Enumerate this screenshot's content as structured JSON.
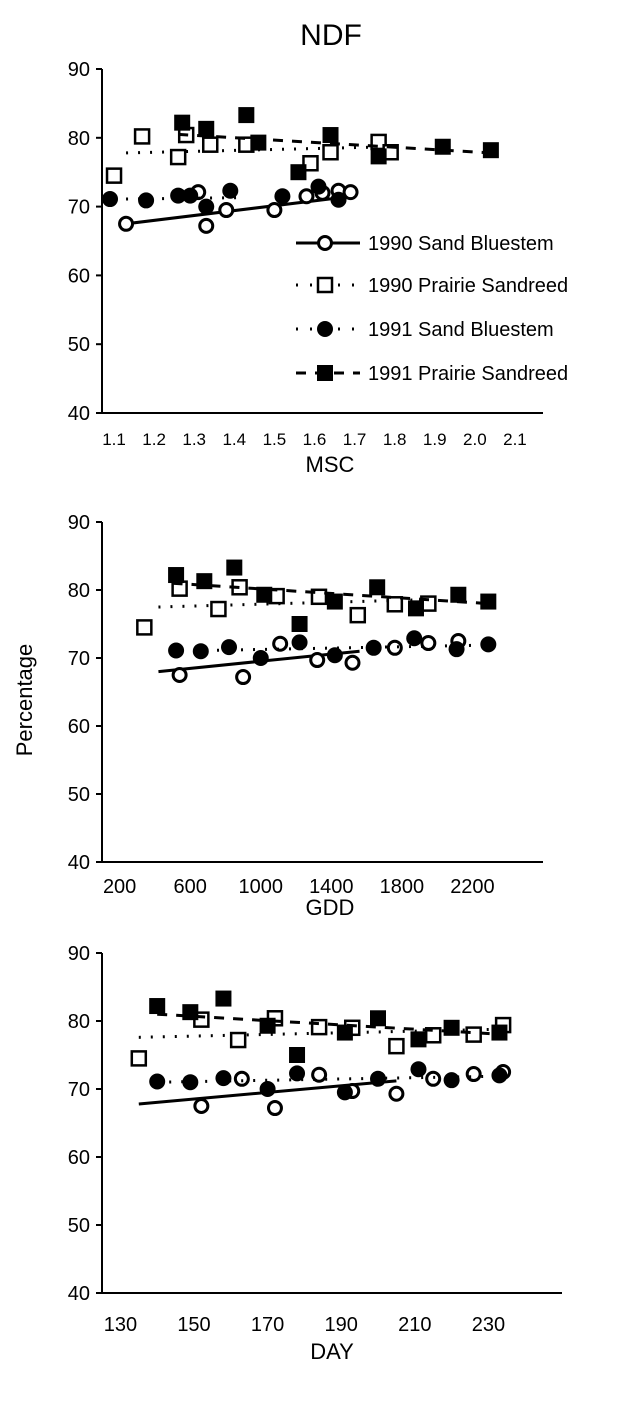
{
  "figure": {
    "title": "NDF",
    "shared_ylabel": "Percentage"
  },
  "legend": [
    {
      "label": "1990 Sand Bluestem",
      "marker": "open-circle",
      "line": "solid"
    },
    {
      "label": "1990 Prairie Sandreed",
      "marker": "open-square",
      "line": "dotted"
    },
    {
      "label": "1991 Sand Bluestem",
      "marker": "filled-circle",
      "line": "dotted"
    },
    {
      "label": "1991 Prairie Sandreed",
      "marker": "filled-square",
      "line": "dashed"
    }
  ],
  "chart_data": [
    {
      "type": "scatter",
      "xlabel": "MSC",
      "ylabel": "",
      "xlim": [
        1.07,
        2.17
      ],
      "ylim": [
        40,
        90
      ],
      "xticks": [
        "1.1",
        "1.2",
        "1.3",
        "1.4",
        "1.5",
        "1.6",
        "1.7",
        "1.8",
        "1.9",
        "2.0",
        "2.1"
      ],
      "xtick_values": [
        1.1,
        1.2,
        1.3,
        1.4,
        1.5,
        1.6,
        1.7,
        1.8,
        1.9,
        2.0,
        2.1
      ],
      "yticks": [
        "40",
        "50",
        "60",
        "70",
        "80",
        "90"
      ],
      "ytick_values": [
        40,
        50,
        60,
        70,
        80,
        90
      ],
      "legend_position": "center-right",
      "series": [
        {
          "name": "1990 Sand Bluestem",
          "x": [
            1.13,
            1.31,
            1.33,
            1.38,
            1.5,
            1.58,
            1.62,
            1.66,
            1.69
          ],
          "y": [
            67.5,
            72.1,
            67.2,
            69.5,
            69.5,
            71.5,
            72.0,
            72.3,
            72.1
          ],
          "fit": [
            [
              1.13,
              67.5
            ],
            [
              1.65,
              71.2
            ]
          ]
        },
        {
          "name": "1990 Prairie Sandreed",
          "x": [
            1.1,
            1.17,
            1.26,
            1.28,
            1.34,
            1.43,
            1.59,
            1.64,
            1.76,
            1.79
          ],
          "y": [
            74.5,
            80.2,
            77.2,
            80.4,
            79.0,
            79.0,
            76.3,
            77.9,
            79.4,
            77.9
          ],
          "fit": [
            [
              1.13,
              77.8
            ],
            [
              1.79,
              78.7
            ]
          ]
        },
        {
          "name": "1991 Sand Bluestem",
          "x": [
            1.09,
            1.18,
            1.26,
            1.29,
            1.33,
            1.39,
            1.52,
            1.61,
            1.66
          ],
          "y": [
            71.1,
            70.9,
            71.6,
            71.6,
            70.0,
            72.3,
            71.5,
            72.9,
            71.0
          ],
          "fit": [
            [
              1.13,
              71.1
            ],
            [
              1.42,
              71.3
            ]
          ]
        },
        {
          "name": "1991 Prairie Sandreed",
          "x": [
            1.27,
            1.33,
            1.43,
            1.46,
            1.56,
            1.64,
            1.76,
            1.92,
            2.04
          ],
          "y": [
            82.2,
            81.3,
            83.3,
            79.3,
            75.0,
            80.4,
            77.3,
            78.7,
            78.2
          ],
          "fit": [
            [
              1.26,
              80.5
            ],
            [
              2.04,
              77.8
            ]
          ]
        }
      ]
    },
    {
      "type": "scatter",
      "xlabel": "GDD",
      "ylabel": "Percentage",
      "xlim": [
        100,
        2600
      ],
      "ylim": [
        40,
        90
      ],
      "xticks": [
        "200",
        "600",
        "1000",
        "1400",
        "1800",
        "2200"
      ],
      "xtick_values": [
        200,
        600,
        1000,
        1400,
        1800,
        2200
      ],
      "yticks": [
        "40",
        "50",
        "60",
        "70",
        "80",
        "90"
      ],
      "ytick_values": [
        40,
        50,
        60,
        70,
        80,
        90
      ],
      "series": [
        {
          "name": "1990 Sand Bluestem",
          "x": [
            540,
            900,
            1110,
            1320,
            1520,
            1760,
            1950,
            2120
          ],
          "y": [
            67.5,
            67.2,
            72.1,
            69.7,
            69.3,
            71.5,
            72.2,
            72.5
          ],
          "fit": [
            [
              420,
              68.0
            ],
            [
              1560,
              71.0
            ]
          ]
        },
        {
          "name": "1990 Prairie Sandreed",
          "x": [
            340,
            540,
            760,
            880,
            1090,
            1330,
            1550,
            1760,
            1950
          ],
          "y": [
            74.5,
            80.2,
            77.2,
            80.4,
            79.1,
            79.0,
            76.3,
            77.9,
            78.0
          ],
          "fit": [
            [
              420,
              77.5
            ],
            [
              1960,
              78.6
            ]
          ]
        },
        {
          "name": "1991 Sand Bluestem",
          "x": [
            520,
            660,
            820,
            1000,
            1220,
            1420,
            1640,
            1870,
            2110,
            2290
          ],
          "y": [
            71.1,
            71.0,
            71.6,
            70.0,
            72.3,
            70.4,
            71.5,
            72.9,
            71.3,
            72.0
          ],
          "fit": [
            [
              480,
              71.0
            ],
            [
              2290,
              71.9
            ]
          ]
        },
        {
          "name": "1991 Prairie Sandreed",
          "x": [
            520,
            680,
            850,
            1020,
            1220,
            1420,
            1660,
            1880,
            2120,
            2290
          ],
          "y": [
            82.2,
            81.3,
            83.3,
            79.3,
            75.0,
            78.3,
            80.4,
            77.3,
            79.3,
            78.3
          ],
          "fit": [
            [
              500,
              81.0
            ],
            [
              2290,
              78.0
            ]
          ]
        }
      ]
    },
    {
      "type": "scatter",
      "xlabel": "DAY",
      "ylabel": "",
      "xlim": [
        125,
        250
      ],
      "ylim": [
        40,
        90
      ],
      "xticks": [
        "130",
        "150",
        "170",
        "190",
        "210",
        "230"
      ],
      "xtick_values": [
        130,
        150,
        170,
        190,
        210,
        230
      ],
      "yticks": [
        "40",
        "50",
        "60",
        "70",
        "80",
        "90"
      ],
      "ytick_values": [
        40,
        50,
        60,
        70,
        80,
        90
      ],
      "series": [
        {
          "name": "1990 Sand Bluestem",
          "x": [
            152,
            163,
            172,
            184,
            193,
            205,
            215,
            226,
            234
          ],
          "y": [
            67.5,
            71.5,
            67.2,
            72.1,
            69.7,
            69.3,
            71.5,
            72.2,
            72.5
          ],
          "fit": [
            [
              135,
              67.8
            ],
            [
              205,
              71.2
            ]
          ]
        },
        {
          "name": "1990 Prairie Sandreed",
          "x": [
            135,
            152,
            162,
            172,
            184,
            193,
            205,
            215,
            226,
            234
          ],
          "y": [
            74.5,
            80.2,
            77.2,
            80.4,
            79.1,
            79.0,
            76.3,
            77.9,
            78.0,
            79.4
          ],
          "fit": [
            [
              135,
              77.6
            ],
            [
              234,
              78.8
            ]
          ]
        },
        {
          "name": "1991 Sand Bluestem",
          "x": [
            140,
            149,
            158,
            170,
            178,
            191,
            200,
            211,
            220,
            233
          ],
          "y": [
            71.1,
            71.0,
            71.6,
            70.0,
            72.3,
            69.5,
            71.5,
            72.9,
            71.3,
            72.0
          ],
          "fit": [
            [
              140,
              71.0
            ],
            [
              235,
              71.9
            ]
          ]
        },
        {
          "name": "1991 Prairie Sandreed",
          "x": [
            140,
            149,
            158,
            170,
            178,
            191,
            200,
            211,
            220,
            233
          ],
          "y": [
            82.2,
            81.3,
            83.3,
            79.3,
            75.0,
            78.3,
            80.4,
            77.3,
            79.0,
            78.3
          ],
          "fit": [
            [
              140,
              81.0
            ],
            [
              235,
              78.0
            ]
          ]
        }
      ]
    }
  ]
}
